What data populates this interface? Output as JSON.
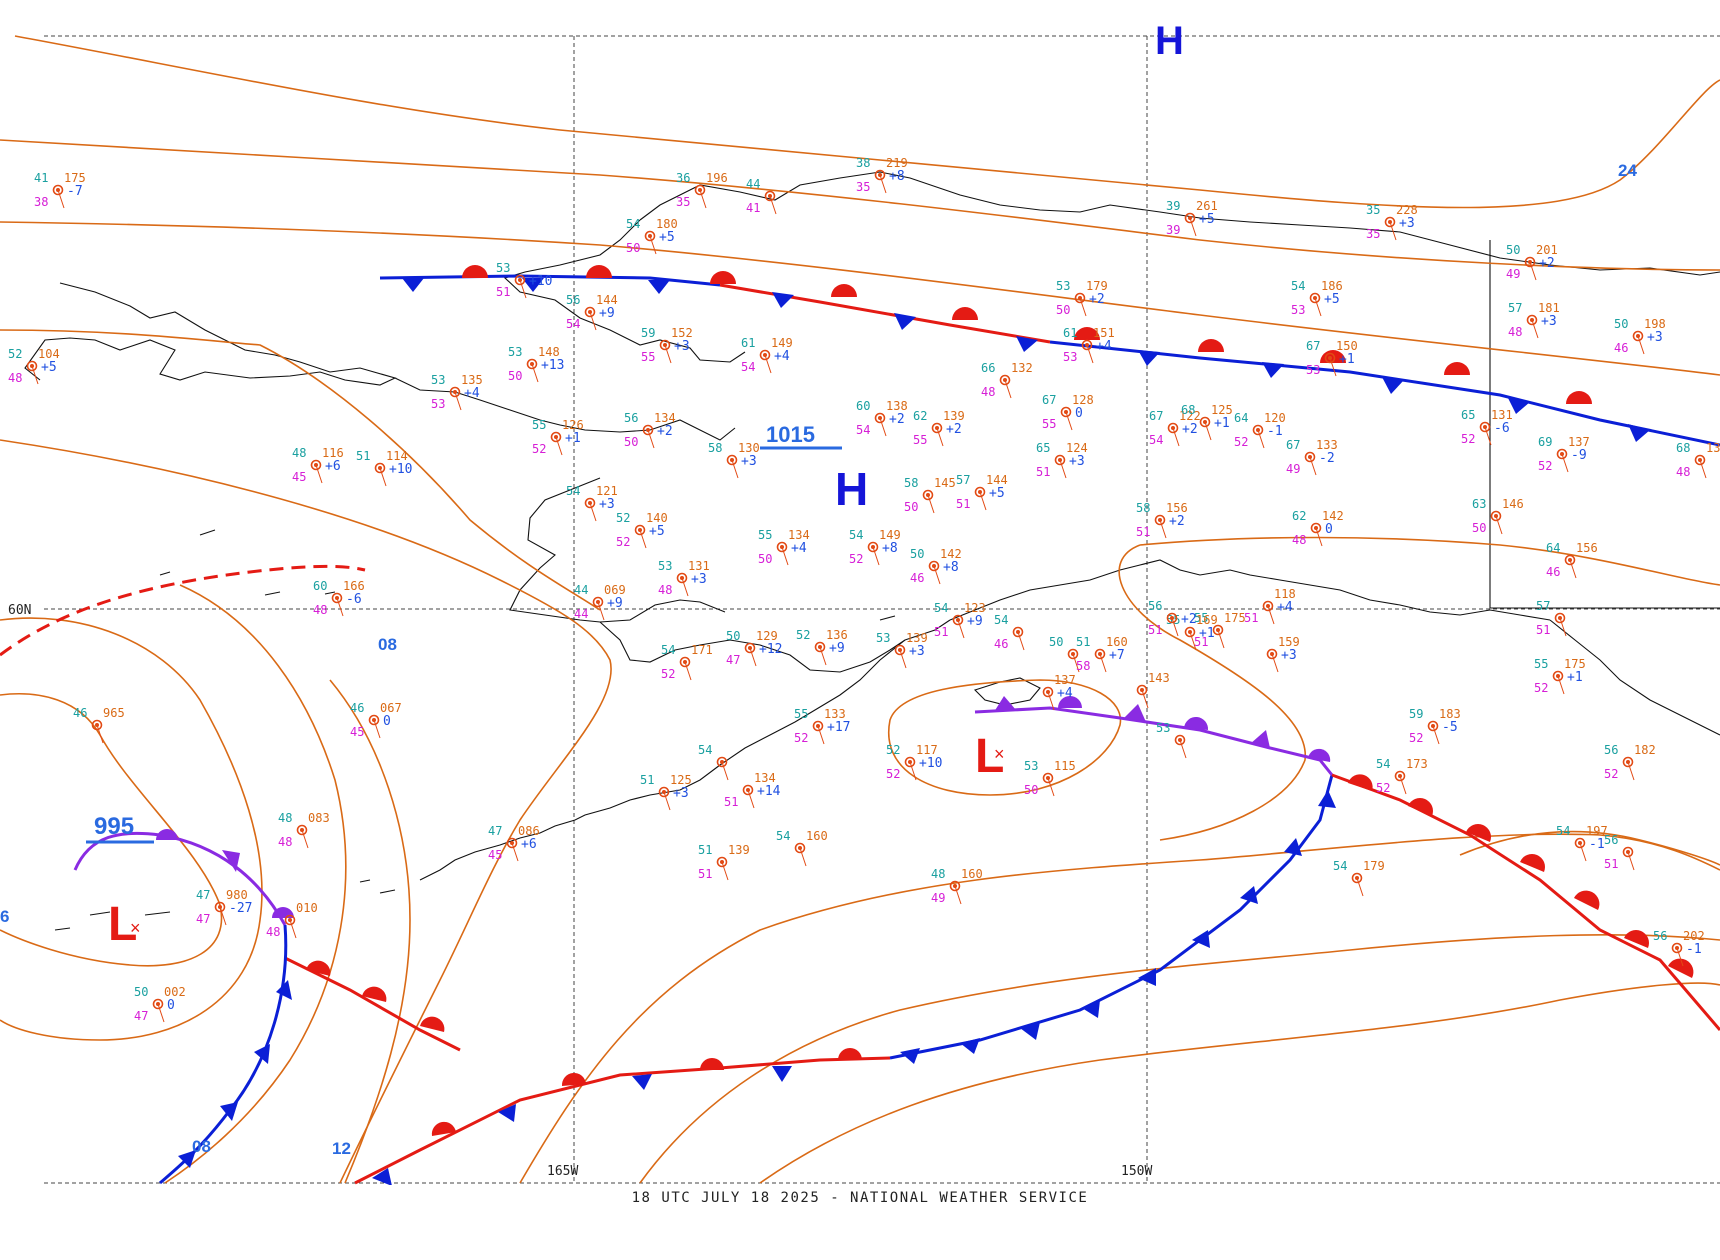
{
  "caption": "18 UTC JULY 18 2025 - NATIONAL WEATHER SERVICE",
  "colors": {
    "isobar": "#d96a16",
    "coast": "#111111",
    "grid": "#444444",
    "cold_front": "#0b1fd6",
    "warm_front": "#e41b14",
    "occluded_front": "#8a2be2",
    "high": "#1515d8",
    "low": "#e41b14",
    "isobar_label": "#2a6ae0",
    "obs_temp": "#1aa0a0",
    "obs_dew": "#d61fd6",
    "obs_pressure": "#d96a16",
    "obs_tendency": "#2050e0",
    "station": "#e24a14"
  },
  "grid_labels": {
    "lat": "60N",
    "lon_left": "165W",
    "lon_right": "150W"
  },
  "pressure_centers": [
    {
      "type": "H",
      "value": "1015"
    },
    {
      "type": "L",
      "value": "995"
    },
    {
      "type": "L",
      "value": ""
    },
    {
      "type": "H",
      "value": ""
    }
  ],
  "isobar_labels": [
    "08",
    "08",
    "12",
    "24",
    "6"
  ],
  "stations": [
    {
      "t": "41",
      "p": "175",
      "d": "38",
      "c": "-7"
    },
    {
      "t": "36",
      "p": "196",
      "d": "35",
      "c": ""
    },
    {
      "t": "38",
      "p": "219",
      "d": "35",
      "c": "+8"
    },
    {
      "t": "44",
      "p": "",
      "d": "41",
      "c": ""
    },
    {
      "t": "39",
      "p": "261",
      "d": "39",
      "c": "+5"
    },
    {
      "t": "35",
      "p": "228",
      "d": "35",
      "c": "+3"
    },
    {
      "t": "54",
      "p": "180",
      "d": "50",
      "c": "+5"
    },
    {
      "t": "53",
      "p": "",
      "d": "51",
      "c": "+10"
    },
    {
      "t": "56",
      "p": "144",
      "d": "54",
      "c": "+9"
    },
    {
      "t": "59",
      "p": "152",
      "d": "55",
      "c": "+3"
    },
    {
      "t": "61",
      "p": "149",
      "d": "54",
      "c": "+4"
    },
    {
      "t": "53",
      "p": "179",
      "d": "50",
      "c": "+2"
    },
    {
      "t": "54",
      "p": "186",
      "d": "53",
      "c": "+5"
    },
    {
      "t": "50",
      "p": "201",
      "d": "49",
      "c": "+2"
    },
    {
      "t": "52",
      "p": "104",
      "d": "48",
      "c": "+5"
    },
    {
      "t": "53",
      "p": "148",
      "d": "50",
      "c": "+13"
    },
    {
      "t": "53",
      "p": "135",
      "d": "53",
      "c": "+4"
    },
    {
      "t": "61",
      "p": "151",
      "d": "53",
      "c": "+4"
    },
    {
      "t": "66",
      "p": "132",
      "d": "48",
      "c": ""
    },
    {
      "t": "67",
      "p": "150",
      "d": "53",
      "c": "+1"
    },
    {
      "t": "57",
      "p": "181",
      "d": "48",
      "c": "+3"
    },
    {
      "t": "50",
      "p": "198",
      "d": "46",
      "c": "+3"
    },
    {
      "t": "55",
      "p": "126",
      "d": "52",
      "c": "+1"
    },
    {
      "t": "56",
      "p": "134",
      "d": "50",
      "c": "+2"
    },
    {
      "t": "60",
      "p": "138",
      "d": "54",
      "c": "+2"
    },
    {
      "t": "62",
      "p": "139",
      "d": "55",
      "c": "+2"
    },
    {
      "t": "67",
      "p": "128",
      "d": "55",
      "c": "0"
    },
    {
      "t": "67",
      "p": "122",
      "d": "54",
      "c": "+2"
    },
    {
      "t": "68",
      "p": "125",
      "d": "",
      "c": "+1"
    },
    {
      "t": "64",
      "p": "120",
      "d": "52",
      "c": "-1"
    },
    {
      "t": "65",
      "p": "131",
      "d": "52",
      "c": "-6"
    },
    {
      "t": "48",
      "p": "116",
      "d": "45",
      "c": "+6"
    },
    {
      "t": "51",
      "p": "114",
      "d": "",
      "c": "+10"
    },
    {
      "t": "58",
      "p": "130",
      "d": "",
      "c": "+3"
    },
    {
      "t": "65",
      "p": "124",
      "d": "51",
      "c": "+3"
    },
    {
      "t": "67",
      "p": "133",
      "d": "49",
      "c": "-2"
    },
    {
      "t": "69",
      "p": "137",
      "d": "52",
      "c": "-9"
    },
    {
      "t": "68",
      "p": "138",
      "d": "48",
      "c": ""
    },
    {
      "t": "54",
      "p": "121",
      "d": "",
      "c": "+3"
    },
    {
      "t": "58",
      "p": "145",
      "d": "50",
      "c": ""
    },
    {
      "t": "57",
      "p": "144",
      "d": "51",
      "c": "+5"
    },
    {
      "t": "52",
      "p": "140",
      "d": "52",
      "c": "+5"
    },
    {
      "t": "55",
      "p": "134",
      "d": "50",
      "c": "+4"
    },
    {
      "t": "54",
      "p": "149",
      "d": "52",
      "c": "+8"
    },
    {
      "t": "58",
      "p": "156",
      "d": "51",
      "c": "+2"
    },
    {
      "t": "62",
      "p": "142",
      "d": "48",
      "c": "0"
    },
    {
      "t": "63",
      "p": "146",
      "d": "50",
      "c": ""
    },
    {
      "t": "53",
      "p": "131",
      "d": "48",
      "c": "+3"
    },
    {
      "t": "50",
      "p": "142",
      "d": "46",
      "c": "+8"
    },
    {
      "t": "64",
      "p": "156",
      "d": "46",
      "c": ""
    },
    {
      "t": "60",
      "p": "166",
      "d": "48",
      "c": "-6"
    },
    {
      "t": "44",
      "p": "069",
      "d": "44",
      "c": "+9"
    },
    {
      "t": "",
      "p": "118",
      "d": "51",
      "c": "+4"
    },
    {
      "t": "55",
      "p": "175",
      "d": "51",
      "c": ""
    },
    {
      "t": "55",
      "p": "169",
      "d": "",
      "c": "+1"
    },
    {
      "t": "54",
      "p": "171",
      "d": "52",
      "c": ""
    },
    {
      "t": "50",
      "p": "129",
      "d": "47",
      "c": "+12"
    },
    {
      "t": "52",
      "p": "136",
      "d": "",
      "c": "+9"
    },
    {
      "t": "53",
      "p": "139",
      "d": "",
      "c": "+3"
    },
    {
      "t": "54",
      "p": "123",
      "d": "51",
      "c": "+9"
    },
    {
      "t": "54",
      "p": "",
      "d": "46",
      "c": ""
    },
    {
      "t": "50",
      "p": "",
      "d": "",
      "c": ""
    },
    {
      "t": "51",
      "p": "160",
      "d": "58",
      "c": "+7"
    },
    {
      "t": "",
      "p": "159",
      "d": "",
      "c": "+3"
    },
    {
      "t": "55",
      "p": "175",
      "d": "52",
      "c": "+1"
    },
    {
      "t": "56",
      "p": "",
      "d": "51",
      "c": "+2"
    },
    {
      "t": "57",
      "p": "",
      "d": "51",
      "c": ""
    },
    {
      "t": "46",
      "p": "965",
      "d": "",
      "c": ""
    },
    {
      "t": "46",
      "p": "067",
      "d": "45",
      "c": "0"
    },
    {
      "t": "55",
      "p": "133",
      "d": "52",
      "c": "+17"
    },
    {
      "t": "52",
      "p": "117",
      "d": "52",
      "c": "+10"
    },
    {
      "t": "53",
      "p": "115",
      "d": "50",
      "c": ""
    },
    {
      "t": "",
      "p": "137",
      "d": "",
      "c": "+4"
    },
    {
      "t": "",
      "p": "143",
      "d": "",
      "c": ""
    },
    {
      "t": "53",
      "p": "",
      "d": "",
      "c": ""
    },
    {
      "t": "59",
      "p": "183",
      "d": "52",
      "c": "-5"
    },
    {
      "t": "54",
      "p": "173",
      "d": "52",
      "c": ""
    },
    {
      "t": "56",
      "p": "182",
      "d": "52",
      "c": ""
    },
    {
      "t": "56",
      "p": "",
      "d": "51",
      "c": ""
    },
    {
      "t": "48",
      "p": "083",
      "d": "48",
      "c": ""
    },
    {
      "t": "54",
      "p": "",
      "d": "",
      "c": ""
    },
    {
      "t": "51",
      "p": "125",
      "d": "",
      "c": "+3"
    },
    {
      "t": "",
      "p": "134",
      "d": "51",
      "c": "+14"
    },
    {
      "t": "47",
      "p": "086",
      "d": "45",
      "c": "+6"
    },
    {
      "t": "51",
      "p": "139",
      "d": "51",
      "c": ""
    },
    {
      "t": "54",
      "p": "160",
      "d": "",
      "c": ""
    },
    {
      "t": "54",
      "p": "197",
      "d": "",
      "c": "-1"
    },
    {
      "t": "54",
      "p": "179",
      "d": "",
      "c": ""
    },
    {
      "t": "56",
      "p": "202",
      "d": "",
      "c": "-1"
    },
    {
      "t": "47",
      "p": "980",
      "d": "47",
      "c": "-27"
    },
    {
      "t": "48",
      "p": "160",
      "d": "49",
      "c": ""
    },
    {
      "t": "",
      "p": "010",
      "d": "48",
      "c": ""
    },
    {
      "t": "50",
      "p": "002",
      "d": "47",
      "c": "0"
    }
  ],
  "legend": {}
}
